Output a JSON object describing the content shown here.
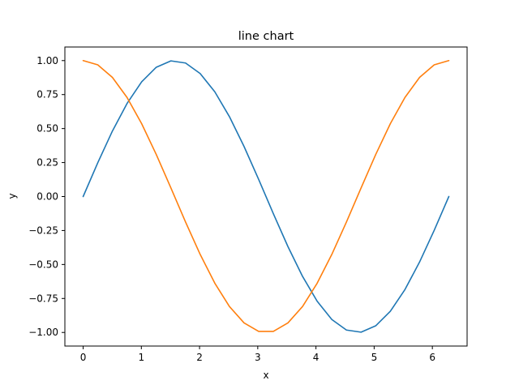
{
  "chart_data": {
    "type": "line",
    "title": "line chart",
    "xlabel": "x",
    "ylabel": "y",
    "xlim": [
      -0.314,
      6.597
    ],
    "ylim": [
      -1.1,
      1.1
    ],
    "grid": false,
    "legend": "none",
    "x_ticks": [
      0,
      1,
      2,
      3,
      4,
      5,
      6
    ],
    "x_tick_labels": [
      "0",
      "1",
      "2",
      "3",
      "4",
      "5",
      "6"
    ],
    "y_ticks": [
      -1.0,
      -0.75,
      -0.5,
      -0.25,
      0.0,
      0.25,
      0.5,
      0.75,
      1.0
    ],
    "y_tick_labels": [
      "−1.00",
      "−0.75",
      "−0.50",
      "−0.25",
      "0.00",
      "0.25",
      "0.50",
      "0.75",
      "1.00"
    ],
    "x": [
      0.0,
      0.2513,
      0.5027,
      0.754,
      1.0053,
      1.2566,
      1.508,
      1.7593,
      2.0106,
      2.2619,
      2.5133,
      2.7646,
      3.0159,
      3.2673,
      3.5186,
      3.7699,
      4.0212,
      4.2726,
      4.5239,
      4.7752,
      5.0265,
      5.2779,
      5.5292,
      5.7805,
      6.0319,
      6.2832
    ],
    "series": [
      {
        "color": "#1f77b4",
        "values": [
          0.0,
          0.2487,
          0.4818,
          0.6845,
          0.8443,
          0.9511,
          0.998,
          0.9823,
          0.9048,
          0.7705,
          0.5878,
          0.3681,
          0.1253,
          -0.1253,
          -0.3681,
          -0.5878,
          -0.7705,
          -0.9048,
          -0.9823,
          -0.998,
          -0.9511,
          -0.8443,
          -0.6845,
          -0.4818,
          -0.2487,
          0.0
        ]
      },
      {
        "color": "#ff7f0e",
        "values": [
          1.0,
          0.9686,
          0.8763,
          0.729,
          0.5358,
          0.309,
          0.0628,
          -0.1874,
          -0.4258,
          -0.6374,
          -0.809,
          -0.9298,
          -0.9921,
          -0.9921,
          -0.9298,
          -0.809,
          -0.6374,
          -0.4258,
          -0.1874,
          0.0628,
          0.309,
          0.5358,
          0.729,
          0.8763,
          0.9686,
          1.0
        ]
      }
    ]
  }
}
